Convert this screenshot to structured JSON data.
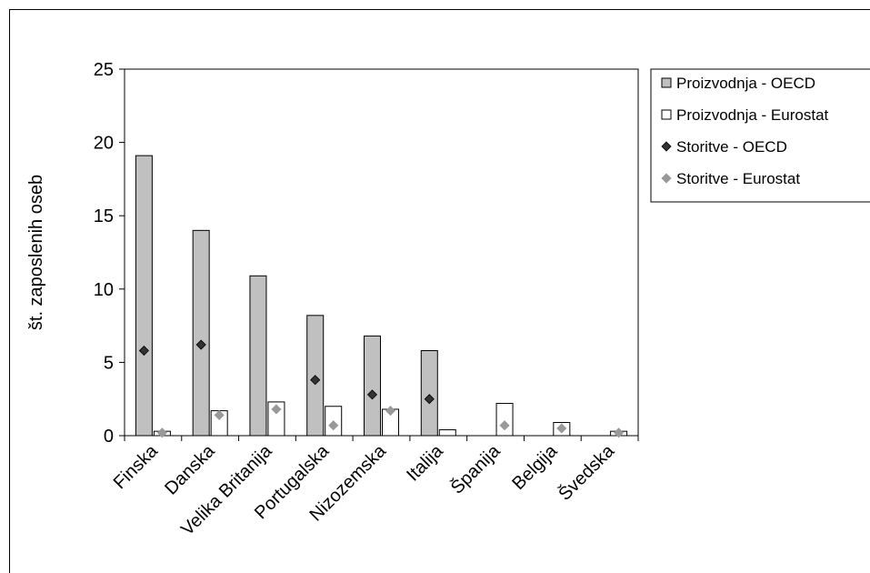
{
  "chart_data": {
    "type": "bar",
    "title": "",
    "xlabel": "",
    "ylabel": "št. zaposlenih oseb",
    "ylim": [
      0,
      25
    ],
    "yticks": [
      0,
      5,
      10,
      15,
      20,
      25
    ],
    "grid": false,
    "legend_position": "right",
    "categories": [
      "Finska",
      "Danska",
      "Velika Britanija",
      "Portugalska",
      "Nizozemska",
      "Italija",
      "Španija",
      "Belgija",
      "Švedska"
    ],
    "series": [
      {
        "name": "Proizvodnja - OECD",
        "kind": "bar",
        "color": "#c0c0c0",
        "values": [
          19.1,
          14.0,
          10.9,
          8.2,
          6.8,
          5.8,
          null,
          null,
          null
        ]
      },
      {
        "name": "Proizvodnja - Eurostat",
        "kind": "bar",
        "color": "#ffffff",
        "values": [
          0.3,
          1.7,
          2.3,
          2.0,
          1.8,
          0.4,
          2.2,
          0.9,
          0.3
        ]
      },
      {
        "name": "Storitve - OECD",
        "kind": "marker",
        "color": "#333333",
        "values": [
          5.8,
          6.2,
          null,
          3.8,
          2.8,
          2.5,
          null,
          null,
          null
        ]
      },
      {
        "name": "Storitve - Eurostat",
        "kind": "marker",
        "color": "#999999",
        "values": [
          0.2,
          1.4,
          1.8,
          0.7,
          1.7,
          null,
          0.7,
          0.5,
          0.2
        ]
      }
    ]
  }
}
